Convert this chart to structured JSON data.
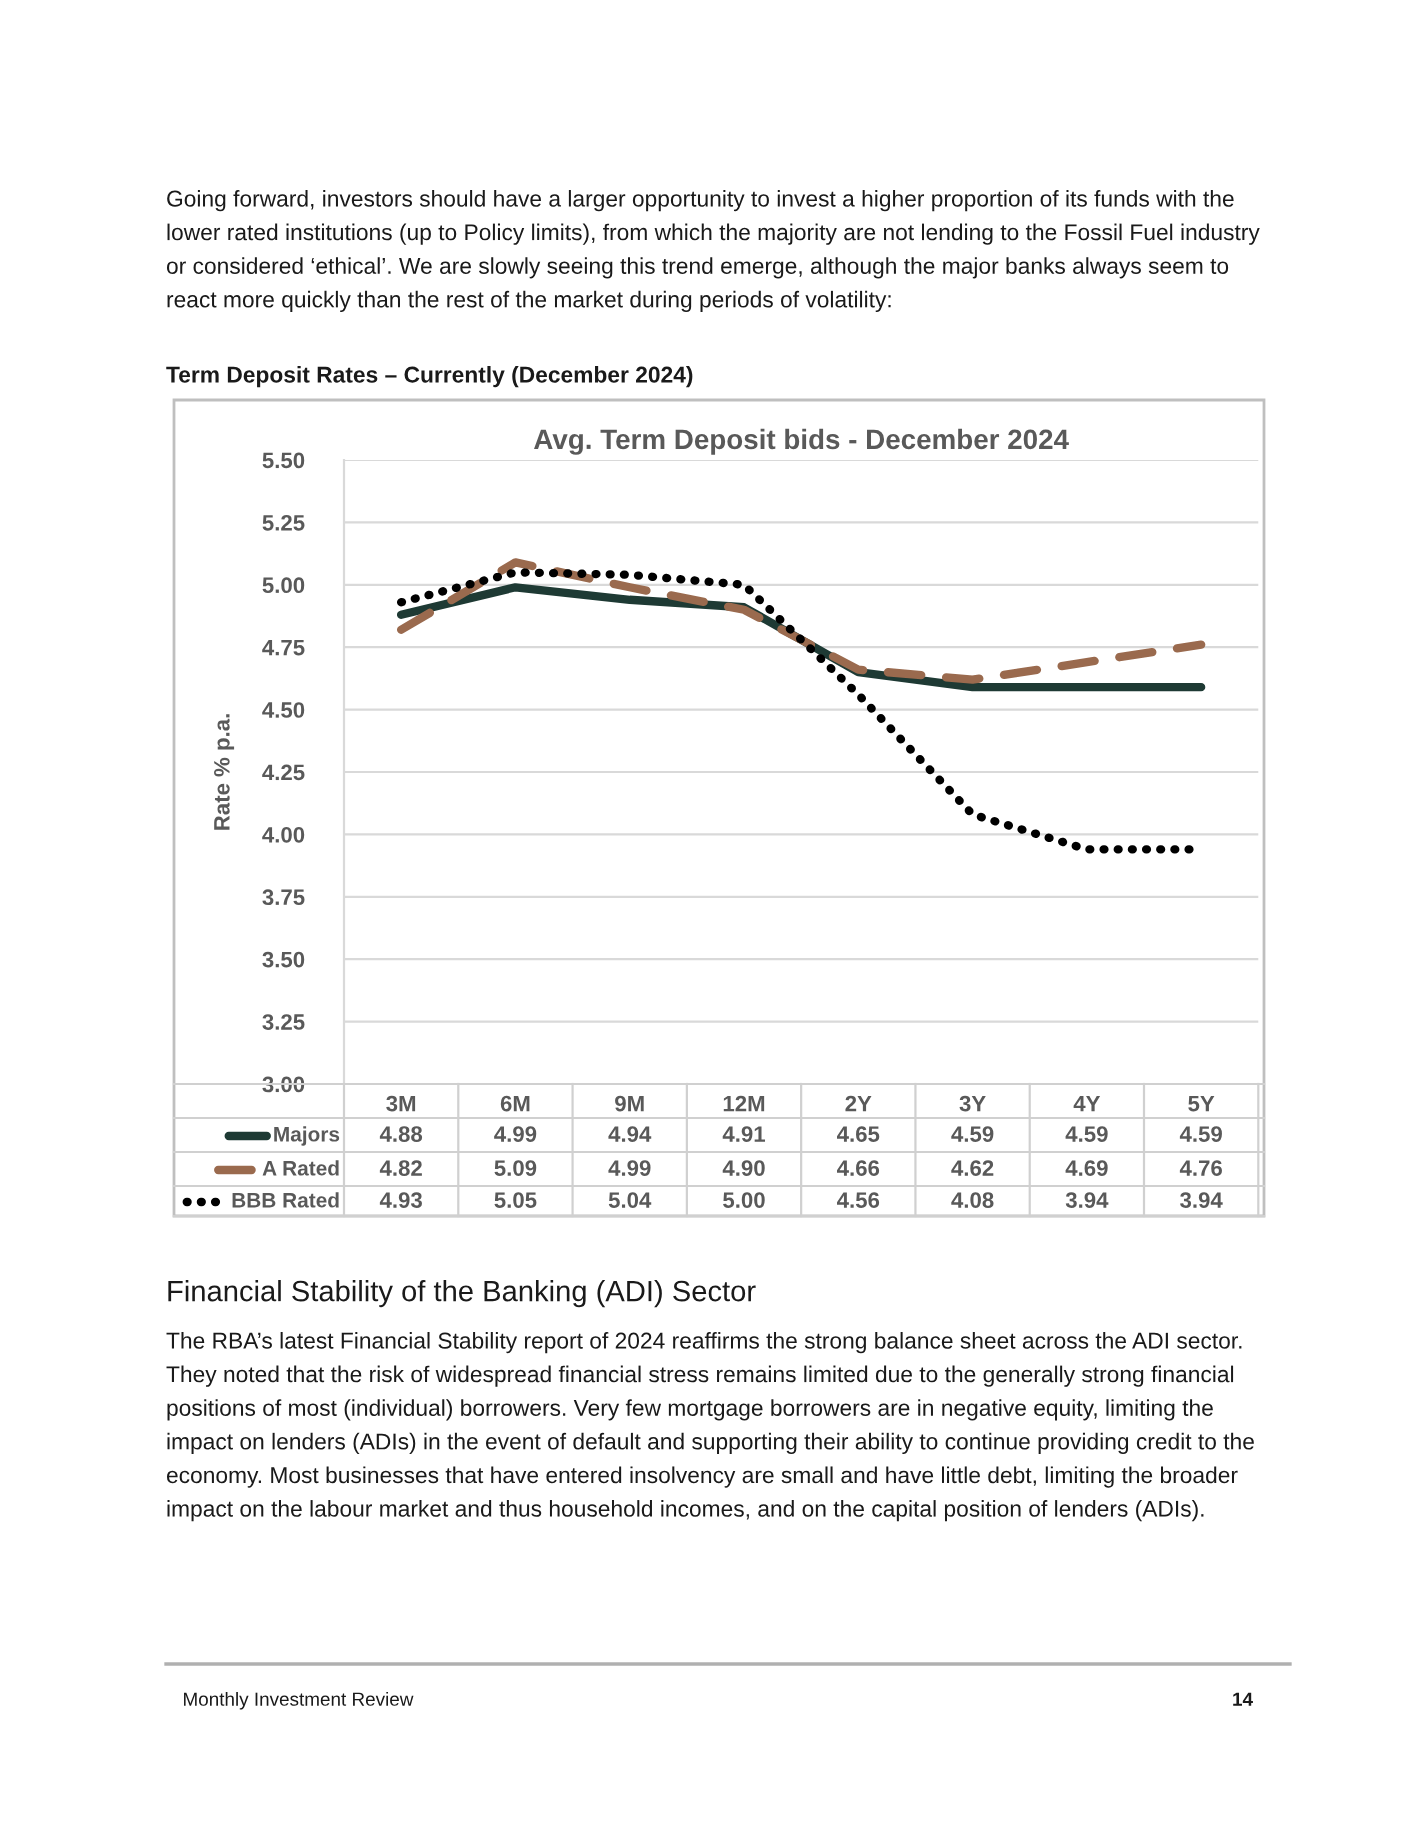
{
  "chart_data": {
    "type": "line",
    "title": "Avg. Term Deposit bids - December 2024",
    "ylabel": "Rate % p.a.",
    "categories": [
      "3M",
      "6M",
      "9M",
      "12M",
      "2Y",
      "3Y",
      "4Y",
      "5Y"
    ],
    "series": [
      {
        "name": "Majors",
        "color": "#1e3a34",
        "line_style": "solid",
        "values": [
          4.88,
          4.99,
          4.94,
          4.91,
          4.65,
          4.59,
          4.59,
          4.59
        ],
        "value_labels": [
          "4.88",
          "4.99",
          "4.94",
          "4.91",
          "4.65",
          "4.59",
          "4.59",
          "4.59"
        ]
      },
      {
        "name": "A Rated",
        "color": "#9a6a4e",
        "line_style": "dashed",
        "values": [
          4.82,
          5.09,
          4.99,
          4.9,
          4.66,
          4.62,
          4.69,
          4.76
        ],
        "value_labels": [
          "4.82",
          "5.09",
          "4.99",
          "4.90",
          "4.66",
          "4.62",
          "4.69",
          "4.76"
        ]
      },
      {
        "name": "BBB Rated",
        "color": "#000000",
        "line_style": "dotted",
        "values": [
          4.93,
          5.05,
          5.04,
          5.0,
          4.56,
          4.08,
          3.94,
          3.94
        ],
        "value_labels": [
          "4.93",
          "5.05",
          "5.04",
          "5.00",
          "4.56",
          "4.08",
          "3.94",
          "3.94"
        ]
      }
    ],
    "ylim": [
      3.0,
      5.5
    ],
    "yticks": [
      "3.00",
      "3.25",
      "3.50",
      "3.75",
      "4.00",
      "4.25",
      "4.50",
      "4.75",
      "5.00",
      "5.25",
      "5.50"
    ],
    "grid": "y",
    "legend": "bottom",
    "annotations": [
      "Going forward, investors should have a larger opportunity to invest a higher proportion of its funds with the lower rated institutions (up to Policy limits), from which the majority are not lending to the Fossil Fuel industry or considered ‘ethical’. We are slowly seeing this trend emerge, although the major banks always seem to react more quickly than the rest of the market during periods of volatility:",
      "Term Deposit Rates – Currently (December 2024)",
      "Financial Stability of the Banking (ADI) Sector",
      "The RBA’s latest Financial Stability report of 2024 reaffirms the strong balance sheet across the ADI sector. They noted that the risk of widespread financial stress remains limited due to the generally strong financial positions of most (individual) borrowers. Very few mortgage borrowers are in negative equity, limiting the impact on lenders (ADIs) in the event of default and supporting their ability to continue providing credit to the economy. Most businesses that have entered insolvency are small and have little debt, limiting the broader impact on the labour market and thus household incomes, and on the capital position of lenders (ADIs).",
      "Monthly Investment Review",
      "14"
    ]
  }
}
